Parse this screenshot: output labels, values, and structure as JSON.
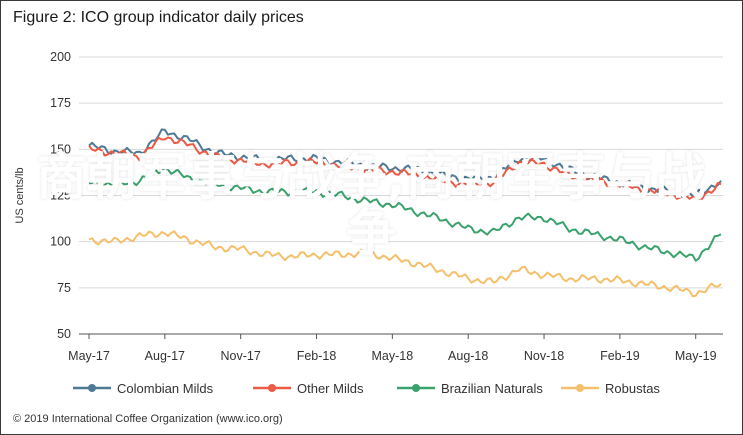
{
  "title": "Figure 2: ICO group indicator daily prices",
  "source": "© 2019 International Coffee Organization (www.ico.org)",
  "overlay_text": "商朝军事与战争,商朝军事与战争",
  "chart_data": {
    "type": "line",
    "ylabel": "US cents/lb",
    "xlabel": "",
    "ylim": [
      50,
      200
    ],
    "yticks": [
      50,
      75,
      100,
      125,
      150,
      175,
      200
    ],
    "x_tick_labels": [
      "May-17",
      "Aug-17",
      "Nov-17",
      "Feb-18",
      "May-18",
      "Aug-18",
      "Nov-18",
      "Feb-19",
      "May-19"
    ],
    "x": [
      "May-17",
      "Jun-17",
      "Jul-17",
      "Aug-17",
      "Sep-17",
      "Oct-17",
      "Nov-17",
      "Dec-17",
      "Jan-18",
      "Feb-18",
      "Mar-18",
      "Apr-18",
      "May-18",
      "Jun-18",
      "Jul-18",
      "Aug-18",
      "Sep-18",
      "Oct-18",
      "Nov-18",
      "Dec-18",
      "Jan-19",
      "Feb-19",
      "Mar-19",
      "Apr-19",
      "May-19",
      "Jun-19"
    ],
    "grid": "horizontal",
    "legend_position": "bottom",
    "series": [
      {
        "name": "Colombian Milds",
        "color": "#4f7a96",
        "values": [
          152,
          149,
          148,
          160,
          155,
          148,
          146,
          144,
          145,
          145,
          143,
          141,
          140,
          139,
          136,
          134,
          135,
          145,
          145,
          139,
          135,
          132,
          129,
          127,
          125,
          133
        ]
      },
      {
        "name": "Other Milds",
        "color": "#ee5a45",
        "values": [
          150,
          148,
          146,
          157,
          152,
          146,
          144,
          142,
          143,
          143,
          141,
          139,
          138,
          136,
          133,
          131,
          132,
          143,
          142,
          136,
          133,
          131,
          128,
          126,
          123,
          131
        ]
      },
      {
        "name": "Brazilian Naturals",
        "color": "#3aa26b",
        "values": [
          132,
          131,
          133,
          140,
          134,
          131,
          129,
          127,
          127,
          127,
          125,
          122,
          120,
          116,
          112,
          107,
          105,
          113,
          113,
          107,
          104,
          101,
          97,
          94,
          91,
          104
        ]
      },
      {
        "name": "Robustas",
        "color": "#f4c06e",
        "values": [
          101,
          100,
          103,
          105,
          101,
          97,
          96,
          93,
          92,
          93,
          93,
          94,
          91,
          88,
          84,
          80,
          78,
          85,
          82,
          80,
          80,
          79,
          77,
          75,
          72,
          77
        ]
      }
    ]
  }
}
